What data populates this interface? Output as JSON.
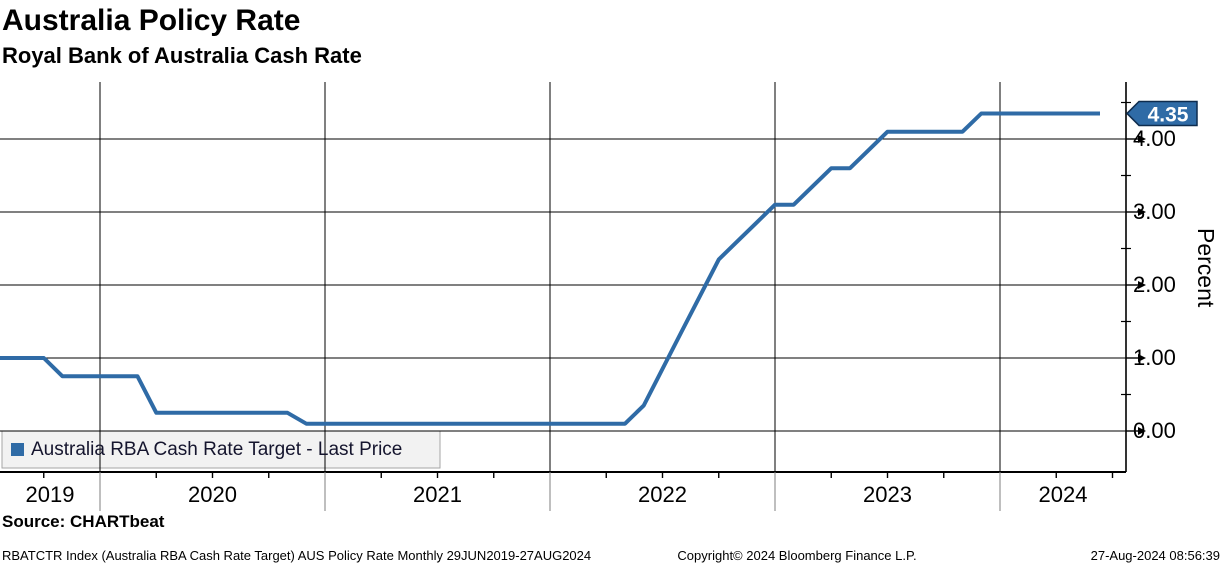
{
  "header": {
    "title": "Australia Policy Rate",
    "subtitle": "Royal Bank of Australia Cash Rate"
  },
  "legend": {
    "label": "Australia RBA Cash Rate Target - Last Price"
  },
  "y_axis": {
    "title": "Percent",
    "tick_labels": [
      "0.00",
      "1.00",
      "2.00",
      "3.00",
      "4.00"
    ],
    "tick_values": [
      0,
      1,
      2,
      3,
      4
    ],
    "minor_tick_values": [
      0.5,
      1.5,
      2.5,
      3.5,
      4.5
    ]
  },
  "x_axis": {
    "year_labels": [
      "2019",
      "2020",
      "2021",
      "2022",
      "2023",
      "2024"
    ],
    "gridline_years": [
      2020,
      2021,
      2022,
      2023,
      2024
    ]
  },
  "last_price": {
    "value": "4.35"
  },
  "source": {
    "text": "Source: CHARTbeat"
  },
  "footer": {
    "left": "RBATCTR Index (Australia RBA Cash Rate Target) AUS Policy Rate  Monthly 29JUN2019-27AUG2024",
    "center": "Copyright© 2024 Bloomberg Finance L.P.",
    "right": "27-Aug-2024 08:56:39"
  },
  "colors": {
    "accent": "#2f6ba6",
    "flag_border": "#0e2c4e",
    "flag_text": "#ffffff",
    "grid": "#000000",
    "year_separator": "#7f7f7f",
    "legend_bg": "#f2f2f2",
    "legend_border": "#a6a6a6",
    "legend_text": "#15152e"
  },
  "chart_data": {
    "type": "line",
    "title": "Australia Policy Rate",
    "subtitle": "Royal Bank of Australia Cash Rate",
    "ylabel": "Percent",
    "xlabel": "",
    "yticks": [
      0.0,
      1.0,
      2.0,
      3.0,
      4.0
    ],
    "ylim": [
      -0.55,
      4.8
    ],
    "x_range": "29JUN2019-27AUG2024",
    "periodicity": "Monthly",
    "grid": true,
    "legend_position": "bottom-left",
    "last_price": 4.35,
    "series": [
      {
        "name": "Australia RBA Cash Rate Target - Last Price",
        "color": "#2f6ba6",
        "points": [
          [
            "2019-06",
            1.0
          ],
          [
            "2019-07",
            1.0
          ],
          [
            "2019-08",
            1.0
          ],
          [
            "2019-09",
            1.0
          ],
          [
            "2019-10",
            0.75
          ],
          [
            "2019-11",
            0.75
          ],
          [
            "2019-12",
            0.75
          ],
          [
            "2020-01",
            0.75
          ],
          [
            "2020-02",
            0.75
          ],
          [
            "2020-03",
            0.25
          ],
          [
            "2020-04",
            0.25
          ],
          [
            "2020-05",
            0.25
          ],
          [
            "2020-06",
            0.25
          ],
          [
            "2020-07",
            0.25
          ],
          [
            "2020-08",
            0.25
          ],
          [
            "2020-09",
            0.25
          ],
          [
            "2020-10",
            0.25
          ],
          [
            "2020-11",
            0.1
          ],
          [
            "2020-12",
            0.1
          ],
          [
            "2021-01",
            0.1
          ],
          [
            "2021-02",
            0.1
          ],
          [
            "2021-03",
            0.1
          ],
          [
            "2021-04",
            0.1
          ],
          [
            "2021-05",
            0.1
          ],
          [
            "2021-06",
            0.1
          ],
          [
            "2021-07",
            0.1
          ],
          [
            "2021-08",
            0.1
          ],
          [
            "2021-09",
            0.1
          ],
          [
            "2021-10",
            0.1
          ],
          [
            "2021-11",
            0.1
          ],
          [
            "2021-12",
            0.1
          ],
          [
            "2022-01",
            0.1
          ],
          [
            "2022-02",
            0.1
          ],
          [
            "2022-03",
            0.1
          ],
          [
            "2022-04",
            0.1
          ],
          [
            "2022-05",
            0.35
          ],
          [
            "2022-06",
            0.85
          ],
          [
            "2022-07",
            1.35
          ],
          [
            "2022-08",
            1.85
          ],
          [
            "2022-09",
            2.35
          ],
          [
            "2022-10",
            2.6
          ],
          [
            "2022-11",
            2.85
          ],
          [
            "2022-12",
            3.1
          ],
          [
            "2023-01",
            3.1
          ],
          [
            "2023-02",
            3.35
          ],
          [
            "2023-03",
            3.6
          ],
          [
            "2023-04",
            3.6
          ],
          [
            "2023-05",
            3.85
          ],
          [
            "2023-06",
            4.1
          ],
          [
            "2023-07",
            4.1
          ],
          [
            "2023-08",
            4.1
          ],
          [
            "2023-09",
            4.1
          ],
          [
            "2023-10",
            4.1
          ],
          [
            "2023-11",
            4.35
          ],
          [
            "2023-12",
            4.35
          ],
          [
            "2024-01",
            4.35
          ],
          [
            "2024-02",
            4.35
          ],
          [
            "2024-03",
            4.35
          ],
          [
            "2024-04",
            4.35
          ],
          [
            "2024-05",
            4.35
          ],
          [
            "2024-06",
            4.35
          ],
          [
            "2024-07",
            4.35
          ],
          [
            "2024-08",
            4.35
          ]
        ]
      }
    ]
  }
}
